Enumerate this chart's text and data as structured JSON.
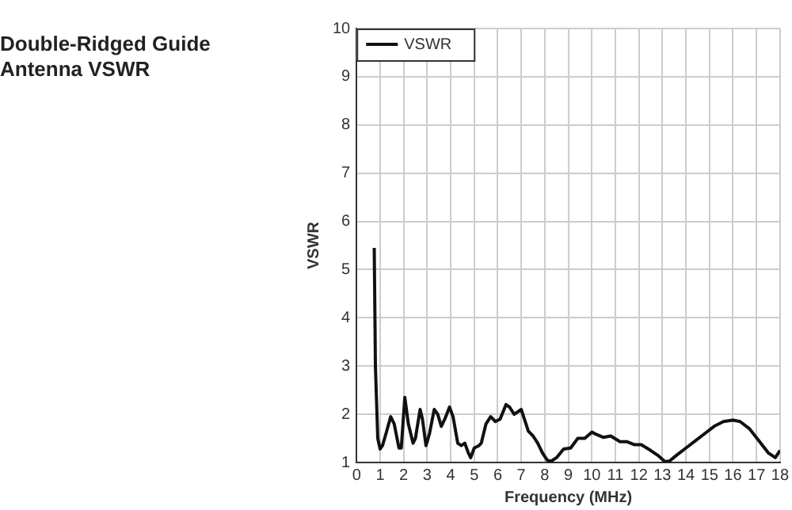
{
  "chart_data": {
    "type": "line",
    "title": "Double-Ridged Guide Antenna VSWR",
    "xlabel": "Frequency (MHz)",
    "ylabel": "VSWR",
    "xlim": [
      0,
      18
    ],
    "xticks": [
      0,
      1,
      2,
      3,
      4,
      5,
      6,
      7,
      8,
      9,
      10,
      11,
      12,
      13,
      14,
      15,
      16,
      17,
      18
    ],
    "ylim": [
      1,
      10
    ],
    "yticks": [
      1,
      2,
      3,
      4,
      5,
      6,
      7,
      8,
      9,
      10
    ],
    "grid": true,
    "legend": "top left",
    "marker": "none",
    "line_style": "solid",
    "series": [
      {
        "name": "VSWR",
        "color": "#111111",
        "x": [
          0.75,
          0.8,
          0.9,
          1.0,
          1.1,
          1.25,
          1.45,
          1.6,
          1.8,
          1.9,
          2.05,
          2.2,
          2.4,
          2.5,
          2.7,
          2.8,
          2.95,
          3.1,
          3.3,
          3.45,
          3.6,
          3.75,
          3.95,
          4.1,
          4.3,
          4.45,
          4.6,
          4.75,
          4.85,
          5.0,
          5.2,
          5.3,
          5.5,
          5.7,
          5.9,
          6.1,
          6.35,
          6.5,
          6.7,
          6.85,
          7.0,
          7.3,
          7.5,
          7.7,
          7.9,
          8.1,
          8.25,
          8.5,
          8.8,
          9.1,
          9.4,
          9.7,
          10.0,
          10.2,
          10.5,
          10.8,
          11.2,
          11.5,
          11.8,
          12.1,
          12.5,
          12.8,
          13.1,
          13.3,
          13.6,
          14.0,
          14.4,
          14.8,
          15.2,
          15.6,
          16.0,
          16.3,
          16.7,
          17.1,
          17.5,
          17.8,
          18.0
        ],
        "values": [
          5.45,
          3.0,
          1.5,
          1.28,
          1.35,
          1.6,
          1.95,
          1.8,
          1.3,
          1.3,
          2.35,
          1.8,
          1.4,
          1.5,
          2.1,
          1.9,
          1.35,
          1.6,
          2.1,
          2.0,
          1.75,
          1.9,
          2.15,
          1.95,
          1.4,
          1.35,
          1.4,
          1.2,
          1.1,
          1.3,
          1.35,
          1.4,
          1.8,
          1.95,
          1.85,
          1.9,
          2.2,
          2.15,
          2.0,
          2.05,
          2.1,
          1.65,
          1.55,
          1.4,
          1.2,
          1.05,
          1.02,
          1.1,
          1.28,
          1.3,
          1.5,
          1.5,
          1.63,
          1.58,
          1.52,
          1.55,
          1.43,
          1.43,
          1.37,
          1.37,
          1.25,
          1.15,
          1.02,
          1.03,
          1.15,
          1.3,
          1.45,
          1.6,
          1.75,
          1.85,
          1.88,
          1.85,
          1.7,
          1.45,
          1.2,
          1.1,
          1.25
        ]
      }
    ]
  }
}
